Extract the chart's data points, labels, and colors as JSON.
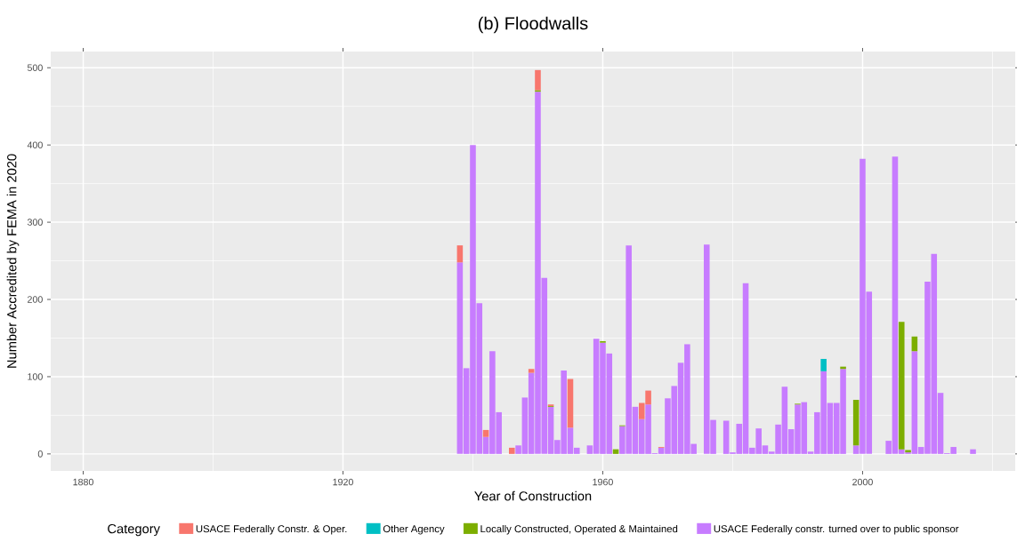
{
  "chart_data": {
    "type": "bar",
    "title": "(b) Floodwalls",
    "xlabel": "Year of Construction",
    "ylabel": "Number Accredited by FEMA in 2020",
    "legend_title": "Category",
    "stacked": true,
    "grid": true,
    "legend": "bottom",
    "x": [
      1938,
      1939,
      1940,
      1941,
      1942,
      1943,
      1944,
      1946,
      1947,
      1948,
      1949,
      1950,
      1951,
      1952,
      1953,
      1954,
      1955,
      1956,
      1958,
      1959,
      1960,
      1961,
      1962,
      1963,
      1964,
      1965,
      1966,
      1967,
      1968,
      1969,
      1970,
      1971,
      1972,
      1973,
      1974,
      1976,
      1977,
      1979,
      1980,
      1981,
      1982,
      1983,
      1984,
      1985,
      1986,
      1987,
      1988,
      1989,
      1990,
      1991,
      1992,
      1993,
      1994,
      1995,
      1996,
      1997,
      1999,
      2000,
      2001,
      2004,
      2005,
      2006,
      2007,
      2008,
      2009,
      2010,
      2011,
      2012,
      2013,
      2014,
      2017
    ],
    "xlim": [
      1875,
      2023.5
    ],
    "ylim": [
      -22,
      521
    ],
    "xticks": [
      1880,
      {
        "value": 1900,
        "label": null
      },
      1920,
      {
        "value": 1940,
        "label": null
      },
      1960,
      {
        "value": 1980,
        "label": null
      },
      2000,
      {
        "value": 2020,
        "label": null
      }
    ],
    "yticks": [
      0,
      {
        "value": 50,
        "label": null
      },
      100,
      {
        "value": 150,
        "label": null
      },
      200,
      {
        "value": 250,
        "label": null
      },
      300,
      {
        "value": 350,
        "label": null
      },
      400,
      {
        "value": 450,
        "label": null
      },
      500
    ],
    "series": [
      {
        "name": "USACE Federally constr. turned over to public sponsor",
        "color": "#c77cff",
        "values": [
          248,
          111,
          400,
          195,
          22,
          133,
          54,
          null,
          11,
          73,
          105,
          469,
          228,
          61,
          18,
          108,
          34,
          8,
          11,
          149,
          144,
          130,
          null,
          36,
          270,
          61,
          45,
          64,
          1,
          8,
          72,
          88,
          118,
          142,
          13,
          271,
          44,
          43,
          2,
          39,
          221,
          8,
          33,
          11,
          3,
          38,
          87,
          32,
          64,
          67,
          3,
          54,
          107,
          66,
          66,
          110,
          11,
          382,
          210,
          17,
          385,
          6,
          2,
          133,
          9,
          223,
          259,
          79,
          1,
          9,
          6
        ]
      },
      {
        "name": "Locally Constructed, Operated & Maintained",
        "color": "#7cae00",
        "values": [
          null,
          null,
          null,
          null,
          null,
          null,
          null,
          null,
          null,
          null,
          null,
          2,
          null,
          1,
          null,
          null,
          null,
          null,
          null,
          null,
          2,
          null,
          6,
          1,
          null,
          null,
          null,
          null,
          null,
          null,
          null,
          null,
          null,
          null,
          null,
          null,
          null,
          null,
          null,
          null,
          null,
          null,
          null,
          null,
          null,
          null,
          null,
          null,
          1,
          null,
          null,
          null,
          null,
          null,
          null,
          3,
          59,
          null,
          null,
          null,
          null,
          165,
          3,
          19,
          null,
          null,
          null,
          null,
          null,
          null,
          null
        ]
      },
      {
        "name": "Other Agency",
        "color": "#00bfc4",
        "values": [
          null,
          null,
          null,
          null,
          null,
          null,
          null,
          null,
          null,
          null,
          null,
          null,
          null,
          null,
          null,
          null,
          null,
          null,
          null,
          null,
          null,
          null,
          null,
          null,
          null,
          null,
          null,
          null,
          null,
          null,
          null,
          null,
          null,
          null,
          null,
          null,
          null,
          null,
          null,
          null,
          null,
          null,
          null,
          null,
          null,
          null,
          null,
          null,
          null,
          null,
          null,
          null,
          16,
          null,
          null,
          null,
          null,
          null,
          null,
          null,
          null,
          null,
          null,
          null,
          null,
          null,
          null,
          null,
          null,
          null,
          null
        ]
      },
      {
        "name": "USACE Federally Constr. & Oper.",
        "color": "#f8766d",
        "values": [
          22,
          null,
          null,
          null,
          9,
          null,
          null,
          8,
          null,
          null,
          5,
          26,
          null,
          2,
          null,
          null,
          63,
          null,
          null,
          null,
          null,
          null,
          null,
          null,
          null,
          null,
          21,
          18,
          null,
          1,
          null,
          null,
          null,
          null,
          null,
          null,
          null,
          null,
          null,
          null,
          null,
          null,
          null,
          null,
          null,
          null,
          null,
          null,
          null,
          null,
          null,
          null,
          null,
          null,
          null,
          null,
          null,
          null,
          null,
          null,
          null,
          null,
          null,
          null,
          null,
          null,
          null,
          null,
          null,
          null,
          null
        ]
      }
    ]
  }
}
